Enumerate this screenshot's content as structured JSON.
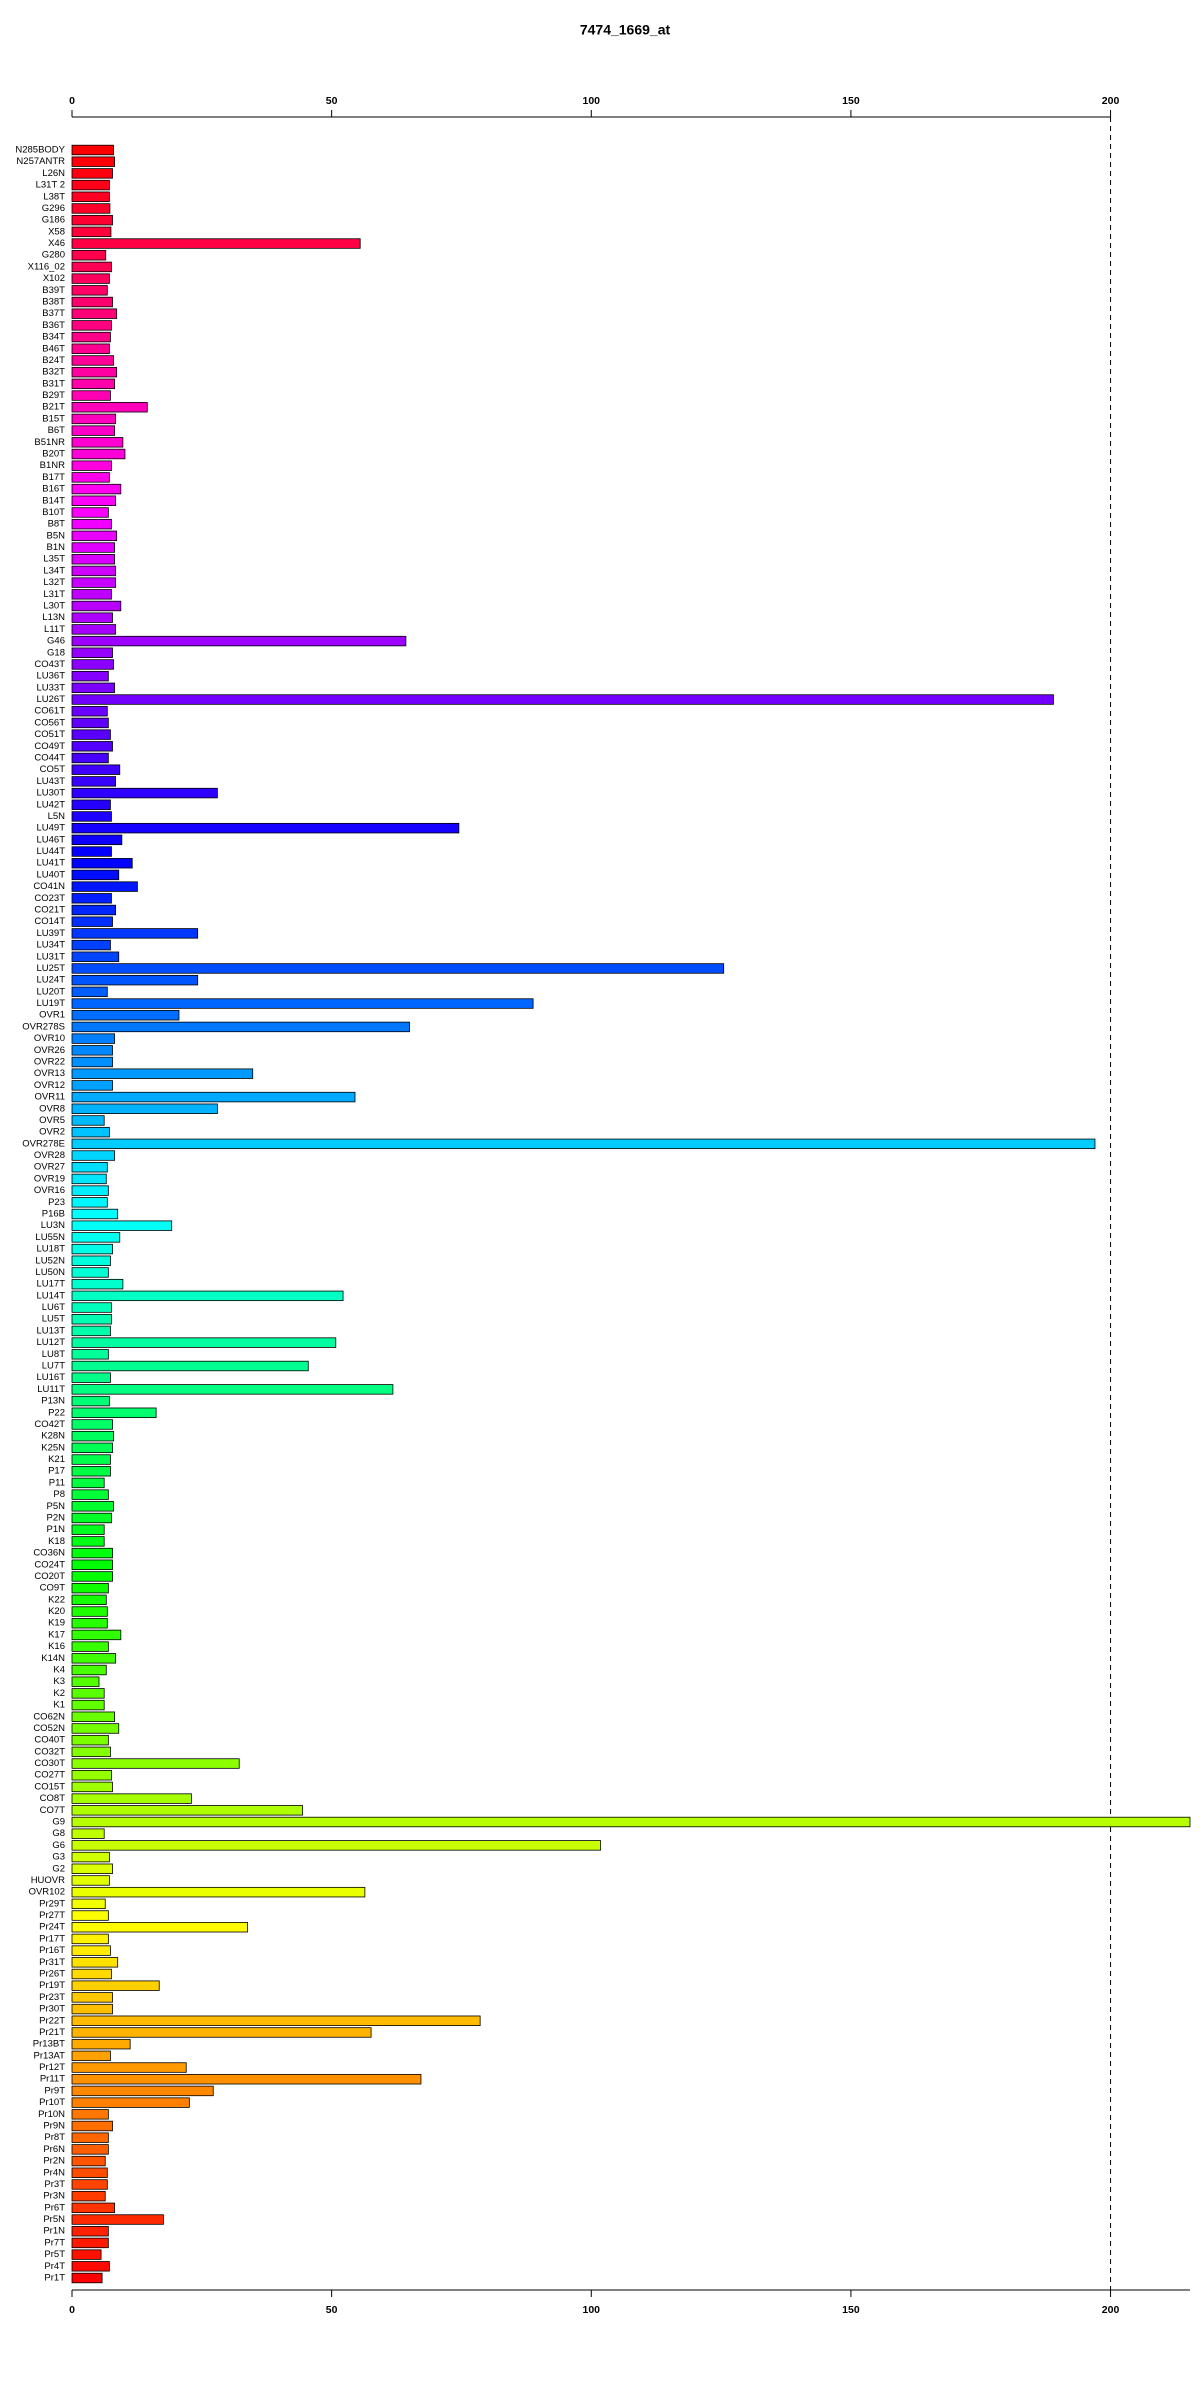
{
  "chart_data": {
    "type": "barh",
    "title": "7474_1669_at",
    "categories": [
      "N285BODY",
      "N257ANTR",
      "L26N",
      "L31T 2",
      "L38T",
      "G296",
      "G186",
      "X58",
      "X46",
      "G280",
      "X116_02",
      "X102",
      "B39T",
      "B38T",
      "B37T",
      "B36T",
      "B34T",
      "B46T",
      "B24T",
      "B32T",
      "B31T",
      "B29T",
      "B21T",
      "B15T",
      "B6T",
      "B51NR",
      "B20T",
      "B1NR",
      "B17T",
      "B16T",
      "B14T",
      "B10T",
      "B8T",
      "B5N",
      "B1N",
      "L35T",
      "L34T",
      "L32T",
      "L31T",
      "L30T",
      "L13N",
      "L11T",
      "G46",
      "G18",
      "CO43T",
      "LU36T",
      "LU33T",
      "LU26T",
      "CO61T",
      "CO56T",
      "CO51T",
      "CO49T",
      "CO44T",
      "CO5T",
      "LU43T",
      "LU30T",
      "LU42T",
      "L5N",
      "LU49T",
      "LU46T",
      "LU44T",
      "LU41T",
      "LU40T",
      "CO41N",
      "CO23T",
      "CO21T",
      "CO14T",
      "LU39T",
      "LU34T",
      "LU31T",
      "LU25T",
      "LU24T",
      "LU20T",
      "LU19T",
      "OVR1",
      "OVR278S",
      "OVR10",
      "OVR26",
      "OVR22",
      "OVR13",
      "OVR12",
      "OVR11",
      "OVR8",
      "OVR5",
      "OVR2",
      "OVR278E",
      "OVR28",
      "OVR27",
      "OVR19",
      "OVR16",
      "P23",
      "P16B",
      "LU3N",
      "LU55N",
      "LU18T",
      "LU52N",
      "LU50N",
      "LU17T",
      "LU14T",
      "LU6T",
      "LU5T",
      "LU13T",
      "LU12T",
      "LU8T",
      "LU7T",
      "LU16T",
      "LU11T",
      "P13N",
      "P22",
      "CO42T",
      "K28N",
      "K25N",
      "K21",
      "P17",
      "P11",
      "P8",
      "P5N",
      "P2N",
      "P1N",
      "K18",
      "CO36N",
      "CO24T",
      "CO20T",
      "CO9T",
      "K22",
      "K20",
      "K19",
      "K17",
      "K16",
      "K14N",
      "K4",
      "K3",
      "K2",
      "K1",
      "CO62N",
      "CO52N",
      "CO40T",
      "CO32T",
      "CO30T",
      "CO27T",
      "CO15T",
      "CO8T",
      "CO7T",
      "G9",
      "G8",
      "G6",
      "G3",
      "G2",
      "HUOVR",
      "OVR102",
      "Pr29T",
      "Pr27T",
      "Pr24T",
      "Pr17T",
      "Pr16T",
      "Pr31T",
      "Pr26T",
      "Pr19T",
      "Pr23T",
      "Pr30T",
      "Pr22T",
      "Pr21T",
      "Pr13BT",
      "Pr13AT",
      "Pr12T",
      "Pr11T",
      "Pr9T",
      "Pr10T",
      "Pr10N",
      "Pr9N",
      "Pr8T",
      "Pr6N",
      "Pr2N",
      "Pr4N",
      "Pr3T",
      "Pr3N",
      "Pr6T",
      "Pr5N",
      "Pr1N",
      "Pr7T",
      "Pr5T",
      "Pr4T",
      "Pr1T"
    ],
    "values": [
      8,
      8.2,
      7.8,
      7.2,
      7.2,
      7.3,
      7.8,
      7.5,
      55.5,
      6.5,
      7.6,
      7.2,
      6.8,
      7.8,
      8.6,
      7.6,
      7.4,
      7.2,
      8,
      8.6,
      8.2,
      7.4,
      14.5,
      8.4,
      8.2,
      9.8,
      10.2,
      7.6,
      7.2,
      9.4,
      8.4,
      7,
      7.6,
      8.6,
      8.2,
      8.2,
      8.4,
      8.4,
      7.6,
      9.4,
      7.8,
      8.4,
      64.3,
      7.8,
      8,
      7,
      8.2,
      189,
      6.8,
      7,
      7.4,
      7.8,
      7,
      9.2,
      8.4,
      28,
      7.4,
      7.6,
      74.5,
      9.6,
      7.6,
      11.6,
      9,
      12.6,
      7.6,
      8.4,
      7.8,
      24.2,
      7.4,
      9,
      125.5,
      24.2,
      6.8,
      88.8,
      20.6,
      65,
      8.2,
      7.8,
      7.8,
      34.8,
      7.8,
      54.5,
      28,
      6.2,
      7.2,
      197,
      8.2,
      6.8,
      6.6,
      7,
      6.8,
      8.8,
      19.2,
      9.2,
      7.8,
      7.4,
      7,
      9.8,
      52.2,
      7.6,
      7.6,
      7.4,
      50.8,
      7,
      45.5,
      7.4,
      61.8,
      7.2,
      16.2,
      7.8,
      8,
      7.8,
      7.4,
      7.4,
      6.2,
      7,
      8,
      7.6,
      6.2,
      6.2,
      7.8,
      7.8,
      7.8,
      7,
      6.6,
      6.8,
      6.8,
      9.4,
      7,
      8.4,
      6.6,
      5.2,
      6.2,
      6.2,
      8.2,
      9,
      7,
      7.4,
      32.2,
      7.6,
      7.8,
      23,
      44.4,
      215.3,
      6.2,
      101.8,
      7.2,
      7.8,
      7.2,
      56.4,
      6.4,
      7,
      33.8,
      7,
      7.4,
      8.8,
      7.6,
      16.8,
      7.8,
      7.8,
      78.6,
      57.6,
      11.2,
      7.4,
      22,
      67.2,
      27.2,
      22.6,
      7,
      7.8,
      7,
      7,
      6.4,
      6.8,
      6.8,
      6.4,
      8.2,
      17.6,
      7,
      7,
      5.6,
      7.2,
      5.8
    ],
    "colors": [
      "hsl(360,100%,50%)",
      "hsl(358,100%,50%)",
      "hsl(356,100%,50%)",
      "hsl(354,100%,50%)",
      "hsl(352,100%,50%)",
      "hsl(350,100%,50%)",
      "hsl(348,100%,50%)",
      "hsl(346,100%,50%)",
      "hsl(344,100%,50%)",
      "hsl(342,100%,50%)",
      "hsl(340,100%,50%)",
      "hsl(338,100%,50%)",
      "hsl(336,100%,50%)",
      "hsl(334,100%,50%)",
      "hsl(332,100%,50%)",
      "hsl(330,100%,50%)",
      "hsl(328,100%,50%)",
      "hsl(326,100%,50%)",
      "hsl(324,100%,50%)",
      "hsl(322,100%,50%)",
      "hsl(320,100%,50%)",
      "hsl(318,100%,50%)",
      "hsl(316,100%,50%)",
      "hsl(315,100%,50%)",
      "hsl(313,100%,50%)",
      "hsl(311,100%,50%)",
      "hsl(309,100%,50%)",
      "hsl(307,100%,50%)",
      "hsl(305,100%,50%)",
      "hsl(303,100%,50%)",
      "hsl(301,100%,50%)",
      "hsl(299,100%,50%)",
      "hsl(297,100%,50%)",
      "hsl(295,100%,50%)",
      "hsl(293,100%,50%)",
      "hsl(291,100%,50%)",
      "hsl(289,100%,50%)",
      "hsl(287,100%,50%)",
      "hsl(285,100%,50%)",
      "hsl(283,100%,50%)",
      "hsl(281,100%,50%)",
      "hsl(279,100%,50%)",
      "hsl(277,100%,50%)",
      "hsl(275,100%,50%)",
      "hsl(273,100%,50%)",
      "hsl(271,100%,50%)",
      "hsl(269,100%,50%)",
      "hsl(267,100%,50%)",
      "hsl(265,100%,50%)",
      "hsl(263,100%,50%)",
      "hsl(261,100%,50%)",
      "hsl(259,100%,50%)",
      "hsl(257,100%,50%)",
      "hsl(255,100%,50%)",
      "hsl(253,100%,50%)",
      "hsl(251,100%,50%)",
      "hsl(249,100%,50%)",
      "hsl(247,100%,50%)",
      "hsl(245,100%,50%)",
      "hsl(243,100%,50%)",
      "hsl(241,100%,50%)",
      "hsl(239,100%,50%)",
      "hsl(237,100%,50%)",
      "hsl(235,100%,50%)",
      "hsl(233,100%,50%)",
      "hsl(231,100%,50%)",
      "hsl(229,100%,50%)",
      "hsl(227,100%,50%)",
      "hsl(225,100%,50%)",
      "hsl(224,100%,50%)",
      "hsl(222,100%,50%)",
      "hsl(220,100%,50%)",
      "hsl(218,100%,50%)",
      "hsl(216,100%,50%)",
      "hsl(214,100%,50%)",
      "hsl(212,100%,50%)",
      "hsl(210,100%,50%)",
      "hsl(208,100%,50%)",
      "hsl(206,100%,50%)",
      "hsl(204,100%,50%)",
      "hsl(202,100%,50%)",
      "hsl(200,100%,50%)",
      "hsl(198,100%,50%)",
      "hsl(196,100%,50%)",
      "hsl(194,100%,50%)",
      "hsl(192,100%,50%)",
      "hsl(190,100%,50%)",
      "hsl(188,100%,50%)",
      "hsl(186,100%,50%)",
      "hsl(184,100%,50%)",
      "hsl(182,100%,50%)",
      "hsl(180,100%,50%)",
      "hsl(178,100%,50%)",
      "hsl(176,100%,50%)",
      "hsl(174,100%,50%)",
      "hsl(172,100%,50%)",
      "hsl(170,100%,50%)",
      "hsl(168,100%,50%)",
      "hsl(166,100%,50%)",
      "hsl(164,100%,50%)",
      "hsl(162,100%,50%)",
      "hsl(160,100%,50%)",
      "hsl(158,100%,50%)",
      "hsl(156,100%,50%)",
      "hsl(154,100%,50%)",
      "hsl(152,100%,50%)",
      "hsl(150,100%,50%)",
      "hsl(148,100%,50%)",
      "hsl(146,100%,50%)",
      "hsl(144,100%,50%)",
      "hsl(142,100%,50%)",
      "hsl(140,100%,50%)",
      "hsl(138,100%,50%)",
      "hsl(136,100%,50%)",
      "hsl(134,100%,50%)",
      "hsl(133,100%,50%)",
      "hsl(131,100%,50%)",
      "hsl(129,100%,50%)",
      "hsl(127,100%,50%)",
      "hsl(125,100%,50%)",
      "hsl(123,100%,50%)",
      "hsl(121,100%,50%)",
      "hsl(119,100%,50%)",
      "hsl(117,100%,50%)",
      "hsl(115,100%,50%)",
      "hsl(113,100%,50%)",
      "hsl(111,100%,50%)",
      "hsl(109,100%,50%)",
      "hsl(107,100%,50%)",
      "hsl(105,100%,50%)",
      "hsl(103,100%,50%)",
      "hsl(101,100%,50%)",
      "hsl(99,100%,50%)",
      "hsl(97,100%,50%)",
      "hsl(95,100%,50%)",
      "hsl(93,100%,50%)",
      "hsl(91,100%,50%)",
      "hsl(89,100%,50%)",
      "hsl(87,100%,50%)",
      "hsl(85,100%,50%)",
      "hsl(83,100%,50%)",
      "hsl(81,100%,50%)",
      "hsl(79,100%,50%)",
      "hsl(77,100%,50%)",
      "hsl(75,100%,50%)",
      "hsl(73,100%,50%)",
      "hsl(71,100%,50%)",
      "hsl(69,100%,50%)",
      "hsl(67,100%,50%)",
      "hsl(65,100%,50%)",
      "hsl(63,100%,50%)",
      "hsl(61,100%,50%)",
      "hsl(59,100%,50%)",
      "hsl(57,100%,50%)",
      "hsl(55,100%,50%)",
      "hsl(53,100%,50%)",
      "hsl(51,100%,50%)",
      "hsl(49,100%,50%)",
      "hsl(47,100%,50%)",
      "hsl(45,100%,50%)",
      "hsl(44,100%,50%)",
      "hsl(42,100%,50%)",
      "hsl(40,100%,50%)",
      "hsl(38,100%,50%)",
      "hsl(36,100%,50%)",
      "hsl(34,100%,50%)",
      "hsl(32,100%,50%)",
      "hsl(30,100%,50%)",
      "hsl(28,100%,50%)",
      "hsl(26,100%,50%)",
      "hsl(24,100%,50%)",
      "hsl(22,100%,50%)",
      "hsl(20,100%,50%)",
      "hsl(18,100%,50%)",
      "hsl(16,100%,50%)",
      "hsl(14,100%,50%)",
      "hsl(12,100%,50%)",
      "hsl(10,100%,50%)",
      "hsl(8,100%,50%)",
      "hsl(6,100%,50%)",
      "hsl(4,100%,50%)",
      "hsl(2,100%,50%)",
      "hsl(0,100%,50%)"
    ],
    "xlim": [
      0,
      215.3
    ],
    "xticks": [
      0,
      50,
      100,
      150,
      200
    ],
    "vline": 200
  }
}
